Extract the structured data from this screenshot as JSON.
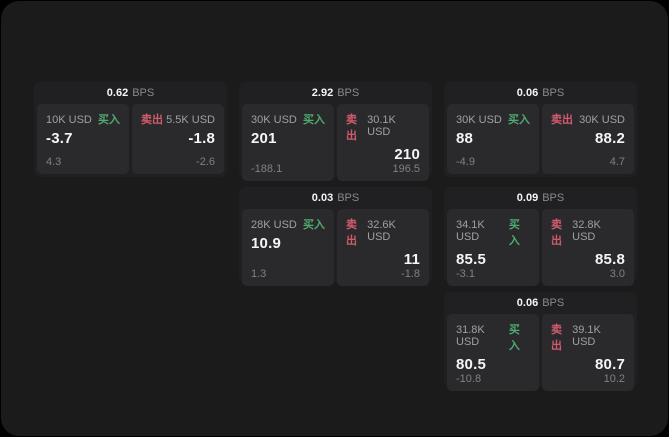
{
  "labels": {
    "buy": "买入",
    "sell": "卖出",
    "bps_unit": "BPS"
  },
  "colors": {
    "buy": "#4faa70",
    "sell": "#d15b6e",
    "surface": "#1b1b1c",
    "card": "#202022",
    "panel": "#2a2a2c"
  },
  "cards": [
    {
      "col": 1,
      "row": 1,
      "bps": "0.62",
      "buy": {
        "size": "10K USD",
        "price": "-3.7",
        "delta": "4.3"
      },
      "sell": {
        "size": "5.5K USD",
        "price": "-1.8",
        "delta": "-2.6"
      }
    },
    {
      "col": 2,
      "row": 1,
      "bps": "2.92",
      "buy": {
        "size": "30K USD",
        "price": "201",
        "delta": "-188.1"
      },
      "sell": {
        "size": "30.1K USD",
        "price": "210",
        "delta": "196.5"
      }
    },
    {
      "col": 3,
      "row": 1,
      "bps": "0.06",
      "buy": {
        "size": "30K USD",
        "price": "88",
        "delta": "-4.9"
      },
      "sell": {
        "size": "30K USD",
        "price": "88.2",
        "delta": "4.7"
      }
    },
    {
      "col": 2,
      "row": 2,
      "bps": "0.03",
      "buy": {
        "size": "28K USD",
        "price": "10.9",
        "delta": "1.3"
      },
      "sell": {
        "size": "32.6K USD",
        "price": "11",
        "delta": "-1.8"
      }
    },
    {
      "col": 3,
      "row": 2,
      "bps": "0.09",
      "buy": {
        "size": "34.1K USD",
        "price": "85.5",
        "delta": "-3.1"
      },
      "sell": {
        "size": "32.8K USD",
        "price": "85.8",
        "delta": "3.0"
      }
    },
    {
      "col": 3,
      "row": 3,
      "bps": "0.06",
      "buy": {
        "size": "31.8K USD",
        "price": "80.5",
        "delta": "-10.8"
      },
      "sell": {
        "size": "39.1K USD",
        "price": "80.7",
        "delta": "10.2"
      }
    }
  ]
}
